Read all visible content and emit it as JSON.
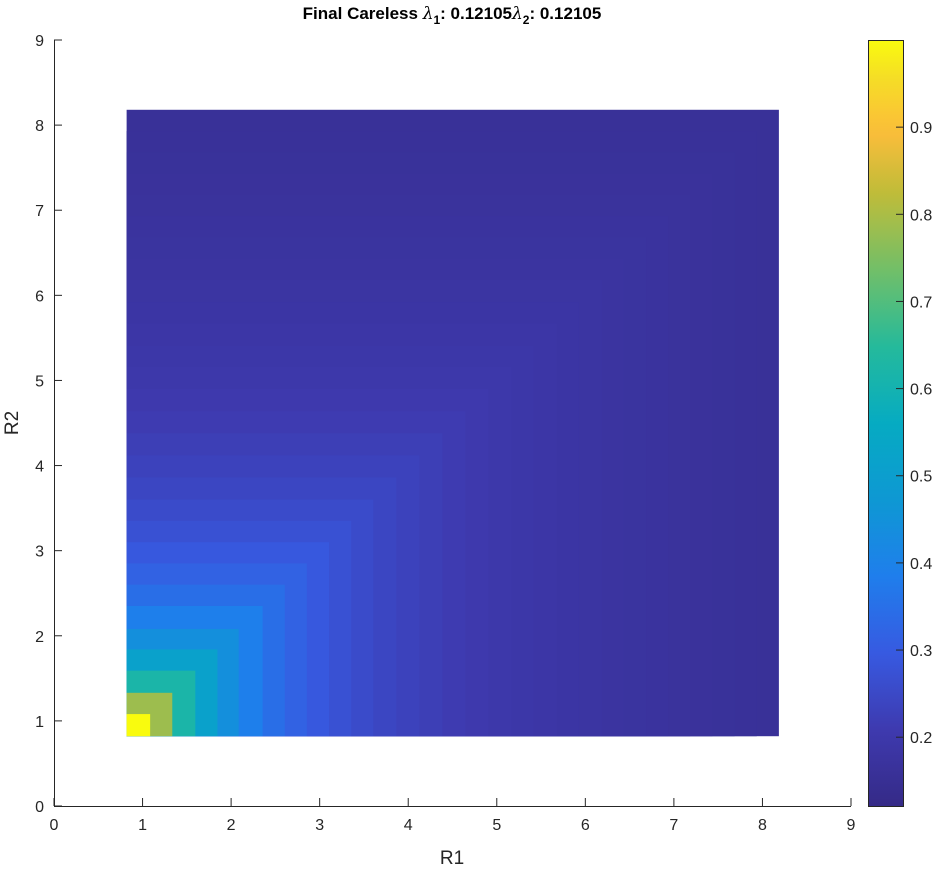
{
  "chart_data": {
    "type": "heatmap",
    "title": {
      "prefix": "Final Careless ",
      "lambda_symbol": "λ",
      "sub1": "1",
      "value1": ": 0.12105",
      "sub2": "2",
      "value2": ": 0.12105"
    },
    "xlabel": "R1",
    "ylabel": "R2",
    "xlim": [
      0,
      9
    ],
    "ylim": [
      0,
      9
    ],
    "xticks": [
      "0",
      "1",
      "2",
      "3",
      "4",
      "5",
      "6",
      "7",
      "8",
      "9"
    ],
    "yticks": [
      "0",
      "1",
      "2",
      "3",
      "4",
      "5",
      "6",
      "7",
      "8",
      "9"
    ],
    "grid": false,
    "surface": {
      "extent_x": [
        0.82,
        8.18
      ],
      "extent_y": [
        0.82,
        8.18
      ],
      "formula": "value = 0.12105 + (1 - 0.12105) * (1 / max(R1, R2)) ^ 1.5",
      "step_breaks": [
        0.82,
        1.08,
        1.33,
        1.59,
        1.84,
        2.08,
        2.35,
        2.6,
        2.85,
        3.1,
        3.35,
        3.6,
        3.86,
        4.12,
        4.38,
        4.64,
        4.9,
        5.16,
        5.41,
        5.67,
        5.92,
        6.18,
        6.43,
        6.68,
        6.93,
        7.18,
        7.43,
        7.68,
        7.93,
        8.18
      ]
    },
    "colorbar": {
      "colormap": "parula",
      "min": 0.12105,
      "max": 1.0,
      "ticks": [
        0.2,
        0.3,
        0.4,
        0.5,
        0.6,
        0.7,
        0.8,
        0.9
      ],
      "tick_labels": [
        "0.2",
        "0.3",
        "0.4",
        "0.5",
        "0.6",
        "0.7",
        "0.8",
        "0.9"
      ]
    }
  }
}
